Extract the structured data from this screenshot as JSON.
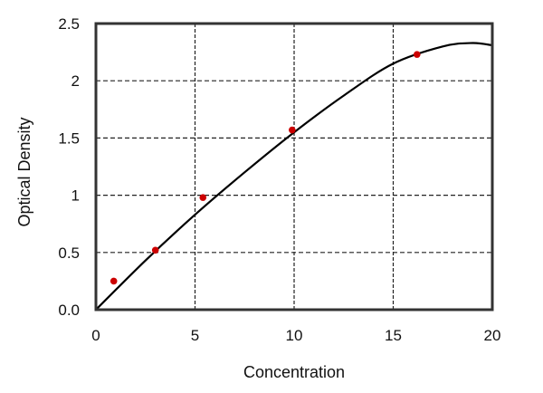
{
  "chart_data": {
    "type": "scatter",
    "title": "",
    "xlabel": "Concentration",
    "ylabel": "Optical Density",
    "xlim": [
      0,
      20
    ],
    "ylim": [
      0,
      2.5
    ],
    "x_ticks": [
      0,
      5,
      10,
      15,
      20
    ],
    "x_tick_labels": [
      "0",
      "5",
      "10",
      "15",
      "20"
    ],
    "y_ticks": [
      0,
      0.5,
      1,
      1.5,
      2,
      2.5
    ],
    "y_tick_labels": [
      "0.0",
      "0.5",
      "1",
      "1.5",
      "2",
      "2.5"
    ],
    "grid": true,
    "grid_style": "dashed",
    "points": {
      "x": [
        0.9,
        3,
        5.4,
        9.9,
        16.2
      ],
      "y": [
        0.25,
        0.52,
        0.98,
        1.57,
        2.23
      ],
      "color": "#cc0000"
    },
    "fit_curve": {
      "x": [
        0,
        2.5,
        5,
        7.5,
        10,
        12.5,
        15,
        17.5,
        19,
        20
      ],
      "y": [
        0,
        0.43,
        0.83,
        1.2,
        1.55,
        1.87,
        2.15,
        2.3,
        2.33,
        2.31
      ],
      "color": "#000000"
    }
  }
}
